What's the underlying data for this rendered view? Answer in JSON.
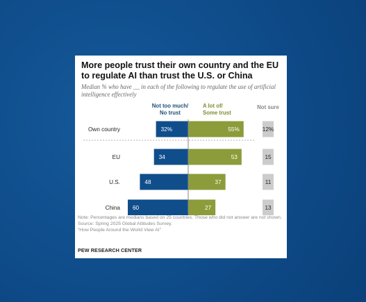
{
  "title": "More people trust their own country and the EU to regulate AI than trust the U.S. or China",
  "subtitle": "Median % who have __ in each of the following to regulate the use of artificial intelligence effectively",
  "legend": {
    "no_trust_line1": "Not too much/",
    "no_trust_line2": "No trust",
    "trust_line1": "A lot of/",
    "trust_line2": "Some trust",
    "not_sure": "Not sure"
  },
  "colors": {
    "no_trust": "#104e8b",
    "trust": "#8c9c3a",
    "not_sure": "#cccccc",
    "no_trust_text": "#1f4e79",
    "trust_text": "#7b8f2e"
  },
  "chart_data": {
    "type": "bar",
    "orientation": "horizontal-diverging",
    "categories": [
      "Own country",
      "EU",
      "U.S.",
      "China"
    ],
    "series": [
      {
        "name": "Not too much/No trust",
        "values": [
          32,
          34,
          48,
          60
        ],
        "labels": [
          "32%",
          "34",
          "48",
          "60"
        ]
      },
      {
        "name": "A lot of/Some trust",
        "values": [
          55,
          53,
          37,
          27
        ],
        "labels": [
          "55%",
          "53",
          "37",
          "27"
        ]
      },
      {
        "name": "Not sure",
        "values": [
          12,
          15,
          11,
          13
        ],
        "labels": [
          "12%",
          "15",
          "11",
          "13"
        ]
      }
    ]
  },
  "note": "Note: Percentages are medians based on 25 countries. Those who did not answer are not shown.",
  "source": "Source: Spring 2025 Global Attitudes Survey.",
  "report": "“How People Around the World View AI”",
  "brand": "PEW RESEARCH CENTER"
}
